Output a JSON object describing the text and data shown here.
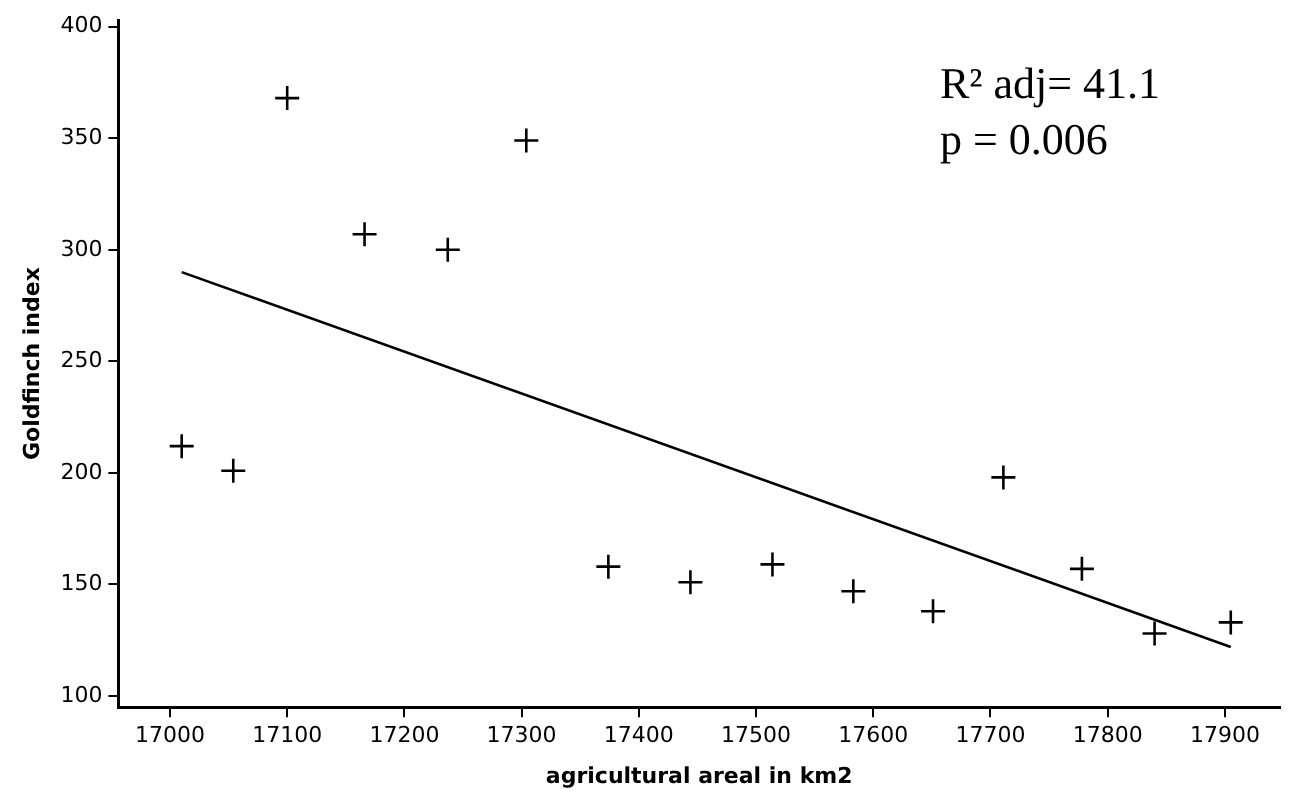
{
  "chart_data": {
    "type": "scatter",
    "xlabel": "agricultural areal in km2",
    "ylabel": "Goldfinch index",
    "xlim": [
      16956,
      17947
    ],
    "ylim": [
      95,
      403
    ],
    "xticks": [
      17000,
      17100,
      17200,
      17300,
      17400,
      17500,
      17600,
      17700,
      17800,
      17900
    ],
    "yticks": [
      100,
      150,
      200,
      250,
      300,
      350,
      400
    ],
    "grid": false,
    "legend": false,
    "series": [
      {
        "marker": "cross",
        "color": "#000000",
        "x": [
          17010,
          17054,
          17100,
          17166,
          17237,
          17304,
          17374,
          17444,
          17514,
          17583,
          17651,
          17711,
          17778,
          17840,
          17905
        ],
        "values": [
          212,
          201,
          368,
          307,
          300,
          349,
          158,
          151,
          159,
          147,
          138,
          198,
          157,
          128,
          133
        ]
      },
      {
        "type": "line",
        "color": "#000000",
        "x": [
          17010,
          17905
        ],
        "values": [
          290,
          122
        ]
      }
    ],
    "annotations": [
      "R² adj= 41.1",
      "p = 0.006"
    ]
  }
}
